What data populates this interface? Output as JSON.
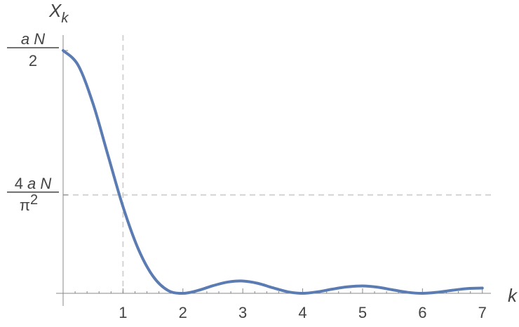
{
  "chart_data": {
    "type": "line",
    "xlabel": "k",
    "ylabel_main": "X",
    "ylabel_sub": "k",
    "xlim": [
      0,
      7.05
    ],
    "ylim": [
      0,
      0.5
    ],
    "x_ticks": [
      1,
      2,
      3,
      4,
      5,
      6,
      7
    ],
    "x_tick_labels": [
      "1",
      "2",
      "3",
      "4",
      "5",
      "6",
      "7"
    ],
    "y_ticks": [
      {
        "value": 0.5,
        "numerator_italic": "a N",
        "numerator_prefix": "",
        "denominator_main": "2",
        "denominator_sup": ""
      },
      {
        "value": 0.2026,
        "numerator_italic": "a N",
        "numerator_prefix": "4 ",
        "denominator_main": "π",
        "denominator_sup": "2"
      }
    ],
    "reference_lines": [
      {
        "orientation": "vertical",
        "x": 1
      },
      {
        "orientation": "horizontal",
        "y": 0.2026
      }
    ],
    "series": [
      {
        "color": "#5b7bb3",
        "x": [
          0,
          0.25,
          0.5,
          0.75,
          1,
          1.25,
          1.5,
          1.75,
          2,
          2.25,
          2.5,
          2.75,
          3,
          3.25,
          3.5,
          3.75,
          4,
          4.25,
          4.5,
          4.75,
          5,
          5.25,
          5.5,
          5.75,
          6,
          6.25,
          6.5,
          6.75,
          7
        ],
        "y": [
          0.5,
          0.4699,
          0.3903,
          0.2839,
          0.1783,
          0.0928,
          0.0353,
          0.006,
          0,
          0.0058,
          0.0156,
          0.0232,
          0.0253,
          0.0206,
          0.0115,
          0.0032,
          0,
          0.0031,
          0.0087,
          0.0133,
          0.0152,
          0.0126,
          0.0072,
          0.0021,
          0,
          0.0022,
          0.0063,
          0.0098,
          0.0108
        ]
      }
    ]
  }
}
